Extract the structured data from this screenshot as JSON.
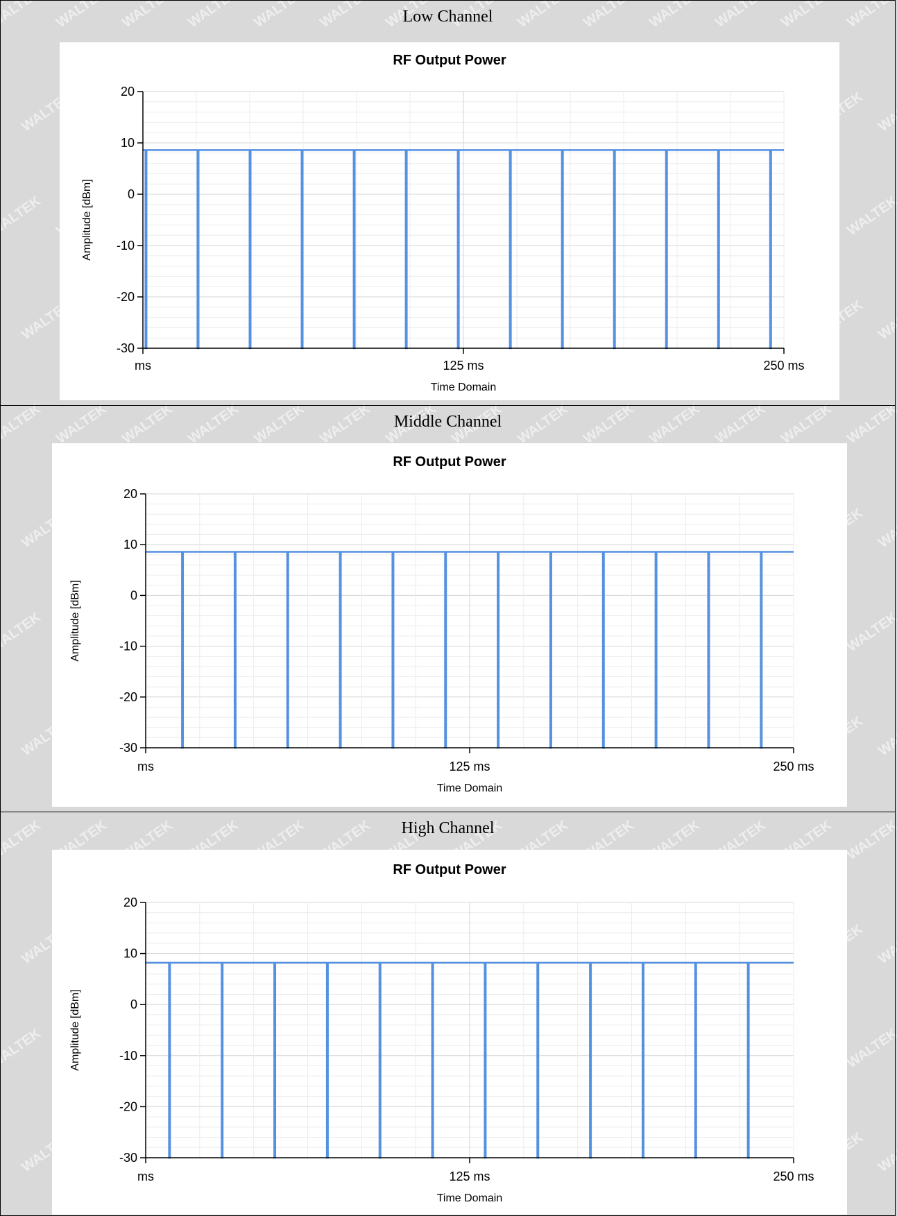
{
  "watermark": {
    "text": "WALTEK"
  },
  "colors": {
    "series": "#5591e1",
    "grid_major": "#d4d4d4",
    "grid_minor": "#ececec",
    "axis": "#000000",
    "background": "#d9d9d9"
  },
  "panels": [
    {
      "heading": "Low Channel"
    },
    {
      "heading": "Middle Channel"
    },
    {
      "heading": "High Channel"
    }
  ],
  "chart_data": [
    {
      "type": "line",
      "title": "RF Output Power",
      "xlabel": "Time Domain",
      "ylabel": "Amplitude [dBm]",
      "xlim": [
        0,
        250
      ],
      "ylim": [
        -30,
        20
      ],
      "y_ticks": [
        20,
        10,
        0,
        -10,
        -20,
        -30
      ],
      "x_tick_labels": [
        {
          "value": 0,
          "label": "ms"
        },
        {
          "value": 125,
          "label": "125 ms"
        },
        {
          "value": 250,
          "label": "250 ms"
        }
      ],
      "grid": true,
      "series": [
        {
          "level": 8.6,
          "gap_times": [
            1,
            21.3,
            41.6,
            61.9,
            82.2,
            102.5,
            122.8,
            143.1,
            163.4,
            183.7,
            204,
            224.3,
            244.6
          ]
        }
      ]
    },
    {
      "type": "line",
      "title": "RF Output Power",
      "xlabel": "Time Domain",
      "ylabel": "Amplitude [dBm]",
      "xlim": [
        0,
        250
      ],
      "ylim": [
        -30,
        20
      ],
      "y_ticks": [
        20,
        10,
        0,
        -10,
        -20,
        -30
      ],
      "x_tick_labels": [
        {
          "value": 0,
          "label": "ms"
        },
        {
          "value": 125,
          "label": "125 ms"
        },
        {
          "value": 250,
          "label": "250 ms"
        }
      ],
      "grid": true,
      "series": [
        {
          "level": 8.6,
          "gap_times": [
            14,
            34.3,
            54.6,
            74.9,
            95.2,
            115.5,
            135.8,
            156.1,
            176.4,
            196.7,
            217,
            237.3
          ]
        }
      ]
    },
    {
      "type": "line",
      "title": "RF Output Power",
      "xlabel": "Time Domain",
      "ylabel": "Amplitude [dBm]",
      "xlim": [
        0,
        250
      ],
      "ylim": [
        -30,
        20
      ],
      "y_ticks": [
        20,
        10,
        0,
        -10,
        -20,
        -30
      ],
      "x_tick_labels": [
        {
          "value": 0,
          "label": "ms"
        },
        {
          "value": 125,
          "label": "125 ms"
        },
        {
          "value": 250,
          "label": "250 ms"
        }
      ],
      "grid": true,
      "series": [
        {
          "level": 8.2,
          "gap_times": [
            9,
            29.3,
            49.6,
            69.9,
            90.2,
            110.5,
            130.8,
            151.1,
            171.4,
            191.7,
            212,
            232.3
          ]
        }
      ]
    }
  ]
}
